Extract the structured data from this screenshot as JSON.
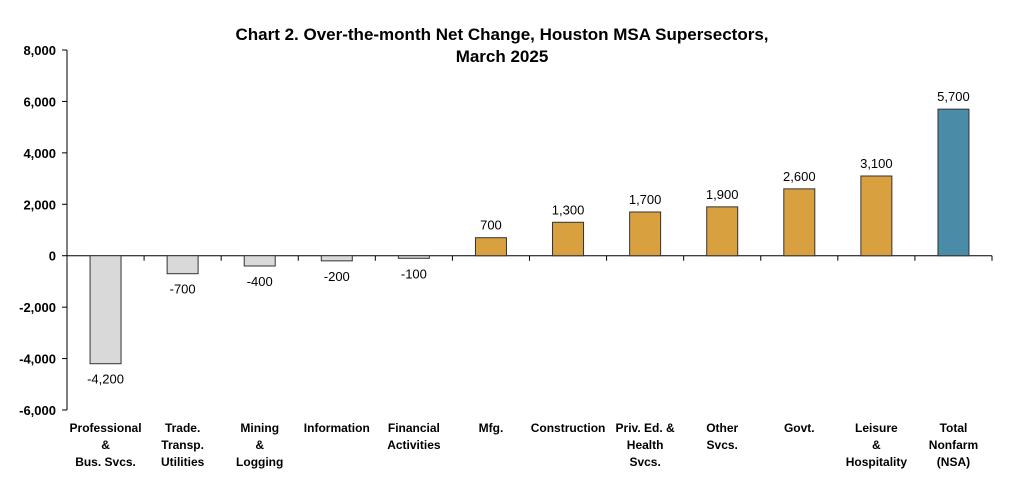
{
  "chart_data": {
    "type": "bar",
    "title_lines": [
      "Chart 2. Over-the-month Net Change, Houston MSA Supersectors,",
      "March 2025"
    ],
    "categories": [
      [
        "Professional",
        "&",
        "Bus. Svcs."
      ],
      [
        "Trade.",
        "Transp.",
        "Utilities"
      ],
      [
        "Mining",
        "&",
        "Logging"
      ],
      [
        "Information"
      ],
      [
        "Financial",
        "Activities"
      ],
      [
        "Mfg."
      ],
      [
        "Construction"
      ],
      [
        "Priv. Ed. &",
        "Health",
        "Svcs."
      ],
      [
        "Other",
        "Svcs."
      ],
      [
        "Govt."
      ],
      [
        "Leisure",
        "&",
        "Hospitality"
      ],
      [
        "Total",
        "Nonfarm",
        "(NSA)"
      ]
    ],
    "values": [
      -4200,
      -700,
      -400,
      -200,
      -100,
      700,
      1300,
      1700,
      1900,
      2600,
      3100,
      5700
    ],
    "data_labels": [
      "-4,200",
      "-700",
      "-400",
      "-200",
      "-100",
      "700",
      "1,300",
      "1,700",
      "1,900",
      "2,600",
      "3,100",
      "5,700"
    ],
    "bar_colors": [
      "#d9d9d9",
      "#d9d9d9",
      "#d9d9d9",
      "#d9d9d9",
      "#d9d9d9",
      "#d9a040",
      "#d9a040",
      "#d9a040",
      "#d9a040",
      "#d9a040",
      "#d9a040",
      "#4a8ba8"
    ],
    "ylim": [
      -6000,
      8000
    ],
    "yticks": [
      8000,
      6000,
      4000,
      2000,
      0,
      -2000,
      -4000,
      -6000
    ],
    "ytick_labels": [
      "8,000",
      "6,000",
      "4,000",
      "2,000",
      "0",
      "-2,000",
      "-4,000",
      "-6,000"
    ],
    "grid": false,
    "legend": "none"
  }
}
